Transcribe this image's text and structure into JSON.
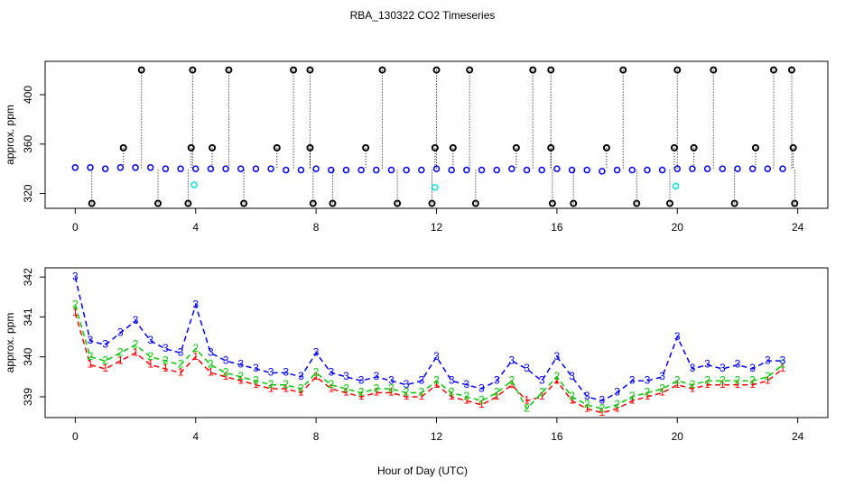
{
  "chart_data": [
    {
      "type": "scatter",
      "title": "RBA_130322  CO2 Timeseries",
      "ylabel": "approx. ppm",
      "marker": "circle",
      "x": [
        0,
        0.5,
        1,
        1.5,
        2,
        2.5,
        3,
        3.5,
        4,
        4.5,
        5,
        5.5,
        6,
        6.5,
        7,
        7.5,
        8,
        8.5,
        9,
        9.5,
        10,
        10.5,
        11,
        11.5,
        12,
        12.5,
        13,
        13.5,
        14,
        14.5,
        15,
        15.5,
        16,
        16.5,
        17,
        17.5,
        18,
        18.5,
        19,
        19.5,
        20,
        20.5,
        21,
        21.5,
        22,
        22.5,
        23,
        23.5
      ],
      "xlim": [
        -1,
        25
      ],
      "xticks": [
        0,
        4,
        8,
        12,
        16,
        20,
        24
      ],
      "ylim": [
        308,
        427
      ],
      "yticks": [
        320,
        360,
        400
      ],
      "series": [
        {
          "color": "#0000ff",
          "values": [
            341,
            341,
            340,
            341,
            341,
            341,
            340,
            340,
            340,
            340,
            340,
            340,
            340,
            340,
            339,
            339,
            340,
            339,
            339,
            339,
            339,
            339,
            339,
            339,
            340,
            339,
            339,
            339,
            339,
            340,
            339,
            339,
            340,
            339,
            339,
            338,
            339,
            339,
            339,
            339,
            340,
            340,
            340,
            340,
            340,
            340,
            340,
            340
          ]
        },
        {
          "color": "#000000",
          "x": [
            2.2,
            3.9,
            5.1,
            7.25,
            7.8,
            10.2,
            12.0,
            13.1,
            15.2,
            15.8,
            18.2,
            20.0,
            21.2,
            23.2,
            23.8,
            0.55,
            2.75,
            3.75,
            5.6,
            7.9,
            8.55,
            10.7,
            11.85,
            13.3,
            15.85,
            16.55,
            18.65,
            19.75,
            21.9,
            23.9,
            1.6,
            3.85,
            4.55,
            6.7,
            7.8,
            9.65,
            11.95,
            12.55,
            14.65,
            15.8,
            17.65,
            19.9,
            20.55,
            22.6,
            23.85
          ],
          "values": [
            420,
            420,
            420,
            420,
            420,
            420,
            420,
            420,
            420,
            420,
            420,
            420,
            420,
            420,
            420,
            312,
            312,
            312,
            312,
            312,
            312,
            312,
            312,
            312,
            312,
            312,
            312,
            312,
            312,
            312,
            357,
            357,
            357,
            357,
            357,
            357,
            357,
            357,
            357,
            357,
            357,
            357,
            357,
            357,
            357
          ]
        },
        {
          "color": "#00e5e5",
          "x": [
            3.95,
            11.95,
            19.95
          ],
          "values": [
            327,
            325,
            326
          ]
        }
      ]
    },
    {
      "type": "line",
      "ylabel": "approx. ppm",
      "xlabel": "Hour of Day (UTC)",
      "linestyle": "dashed",
      "x": [
        0,
        0.5,
        1,
        1.5,
        2,
        2.5,
        3,
        3.5,
        4,
        4.5,
        5,
        5.5,
        6,
        6.5,
        7,
        7.5,
        8,
        8.5,
        9,
        9.5,
        10,
        10.5,
        11,
        11.5,
        12,
        12.5,
        13,
        13.5,
        14,
        14.5,
        15,
        15.5,
        16,
        16.5,
        17,
        17.5,
        18,
        18.5,
        19,
        19.5,
        20,
        20.5,
        21,
        21.5,
        22,
        22.5,
        23,
        23.5
      ],
      "xlim": [
        -1,
        25
      ],
      "xticks": [
        0,
        4,
        8,
        12,
        16,
        20,
        24
      ],
      "ylim": [
        338.48,
        342.23
      ],
      "yticks": [
        339,
        340,
        341,
        342
      ],
      "series": [
        {
          "name": "1",
          "color": "#ff0000",
          "values": [
            341.1,
            339.8,
            339.7,
            339.9,
            340.1,
            339.8,
            339.7,
            339.6,
            340.0,
            339.6,
            339.5,
            339.4,
            339.3,
            339.2,
            339.2,
            339.1,
            339.5,
            339.2,
            339.1,
            339.0,
            339.1,
            339.1,
            339.0,
            339.0,
            339.3,
            339.0,
            338.9,
            338.8,
            339.0,
            339.3,
            338.9,
            339.0,
            339.4,
            338.9,
            338.7,
            338.6,
            338.7,
            338.9,
            339.0,
            339.1,
            339.3,
            339.2,
            339.3,
            339.3,
            339.3,
            339.3,
            339.4,
            339.7
          ]
        },
        {
          "name": "2",
          "color": "#00cd00",
          "values": [
            341.3,
            340.0,
            339.9,
            340.1,
            340.3,
            340.0,
            339.9,
            339.8,
            340.2,
            339.8,
            339.6,
            339.5,
            339.4,
            339.3,
            339.3,
            339.2,
            339.6,
            339.3,
            339.2,
            339.1,
            339.2,
            339.2,
            339.1,
            339.1,
            339.4,
            339.1,
            339.0,
            338.9,
            339.1,
            339.4,
            338.7,
            339.1,
            339.5,
            339.0,
            338.8,
            338.7,
            338.8,
            339.0,
            339.1,
            339.2,
            339.4,
            339.3,
            339.4,
            339.4,
            339.4,
            339.4,
            339.5,
            339.8
          ]
        },
        {
          "name": "3",
          "color": "#0000ff",
          "values": [
            342.0,
            340.4,
            340.3,
            340.6,
            340.9,
            340.4,
            340.2,
            340.1,
            341.3,
            340.1,
            339.9,
            339.8,
            339.7,
            339.6,
            339.6,
            339.5,
            340.1,
            339.6,
            339.5,
            339.4,
            339.5,
            339.4,
            339.3,
            339.4,
            340.0,
            339.4,
            339.3,
            339.2,
            339.4,
            339.9,
            339.7,
            339.4,
            340.0,
            339.5,
            339.0,
            338.9,
            339.1,
            339.4,
            339.4,
            339.5,
            340.5,
            339.7,
            339.8,
            339.7,
            339.8,
            339.7,
            339.9,
            339.9
          ]
        }
      ]
    }
  ]
}
